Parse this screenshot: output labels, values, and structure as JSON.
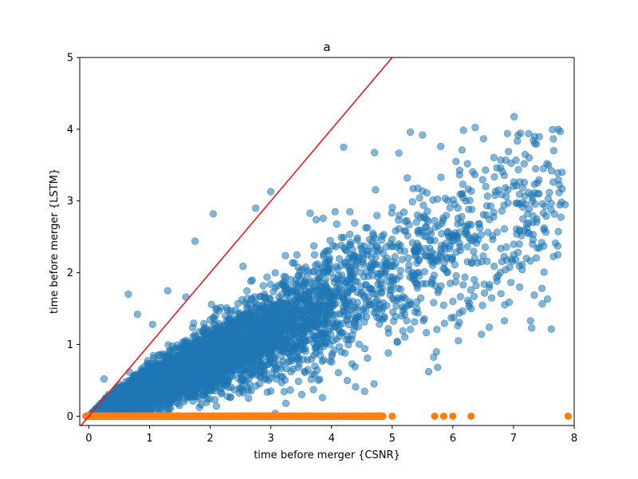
{
  "chart_data": {
    "type": "scatter",
    "title": "a",
    "xlabel": "time before merger {CSNR}",
    "ylabel": "time before merger {LSTM}",
    "xlim": [
      -0.15,
      8
    ],
    "ylim": [
      -0.13,
      5
    ],
    "xticks": [
      0,
      1,
      2,
      3,
      4,
      5,
      6,
      7,
      8
    ],
    "yticks": [
      0,
      1,
      2,
      3,
      4,
      5
    ],
    "grid": false,
    "colors": {
      "series_blue": "#1f77b4",
      "series_orange": "#ff7f0e",
      "reference_line": "#e41a1c"
    },
    "reference_line": {
      "points": [
        [
          -0.15,
          -0.15
        ],
        [
          5.13,
          5.13
        ]
      ],
      "description_slope": 1
    },
    "series": [
      {
        "color": "#1f77b4",
        "alpha": 0.55,
        "highlighted_points": [
          [
            5.3,
            3.96
          ],
          [
            5.5,
            3.92
          ],
          [
            4.2,
            3.75
          ],
          [
            5.8,
            3.76
          ],
          [
            6.15,
            3.71
          ],
          [
            6.9,
            3.94
          ],
          [
            7.25,
            3.94
          ],
          [
            7.35,
            3.8
          ],
          [
            7.55,
            3.52
          ],
          [
            7.8,
            3.4
          ],
          [
            7.85,
            2.95
          ],
          [
            7.5,
            2.6
          ],
          [
            6.85,
            1.33
          ],
          [
            6.6,
            1.24
          ],
          [
            7.3,
            1.23
          ],
          [
            6.3,
            1.5
          ],
          [
            6.0,
            1.6
          ],
          [
            3.0,
            3.13
          ],
          [
            2.05,
            2.82
          ],
          [
            1.75,
            2.44
          ],
          [
            2.75,
            2.9
          ],
          [
            0.65,
            1.7
          ],
          [
            1.3,
            1.75
          ],
          [
            1.6,
            1.66
          ],
          [
            0.8,
            1.42
          ],
          [
            1.05,
            1.28
          ],
          [
            5.6,
            0.62
          ],
          [
            5.75,
            0.68
          ],
          [
            3.85,
            0.26
          ],
          [
            3.0,
            0.35
          ],
          [
            2.4,
            0.37
          ],
          [
            0.25,
            0.52
          ],
          [
            4.7,
            0.45
          ]
        ],
        "cloud": {
          "x_range": [
            0,
            7.9
          ],
          "trend": "y approximately 0.4 * x with spread growing with x",
          "approx_count": 6000
        }
      },
      {
        "color": "#ff7f0e",
        "alpha": 1.0,
        "points_at_y": 0,
        "x_range": [
          -0.05,
          6.3
        ],
        "outliers_x": [
          5.0,
          5.7,
          5.85,
          6.0,
          6.3,
          7.9
        ]
      }
    ]
  }
}
